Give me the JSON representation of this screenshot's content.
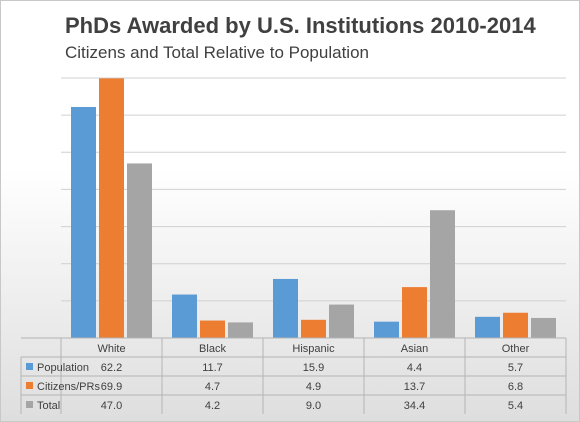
{
  "chart_data": {
    "type": "bar",
    "title": "PhDs Awarded by U.S. Institutions 2010-2014",
    "subtitle": "Citizens and Total Relative to Population",
    "categories": [
      "White",
      "Black",
      "Hispanic",
      "Asian",
      "Other"
    ],
    "series": [
      {
        "name": "Population",
        "values": [
          62.2,
          11.7,
          15.9,
          4.4,
          5.7
        ],
        "labels": [
          "62.2",
          "11.7",
          "15.9",
          "4.4",
          "5.7"
        ],
        "color": "#5b9bd5"
      },
      {
        "name": "Citizens/PRs",
        "values": [
          69.9,
          4.7,
          4.9,
          13.7,
          6.8
        ],
        "labels": [
          "69.9",
          "4.7",
          "4.9",
          "13.7",
          "6.8"
        ],
        "color": "#ed7d31"
      },
      {
        "name": "Total",
        "values": [
          47.0,
          4.2,
          9.0,
          34.4,
          5.4
        ],
        "labels": [
          "47.0",
          "4.2",
          "9.0",
          "34.4",
          "5.4"
        ],
        "color": "#a5a5a5"
      }
    ],
    "ylim": [
      0,
      70
    ],
    "grid": true,
    "legend": "data-table",
    "xlabel": "",
    "ylabel": ""
  }
}
